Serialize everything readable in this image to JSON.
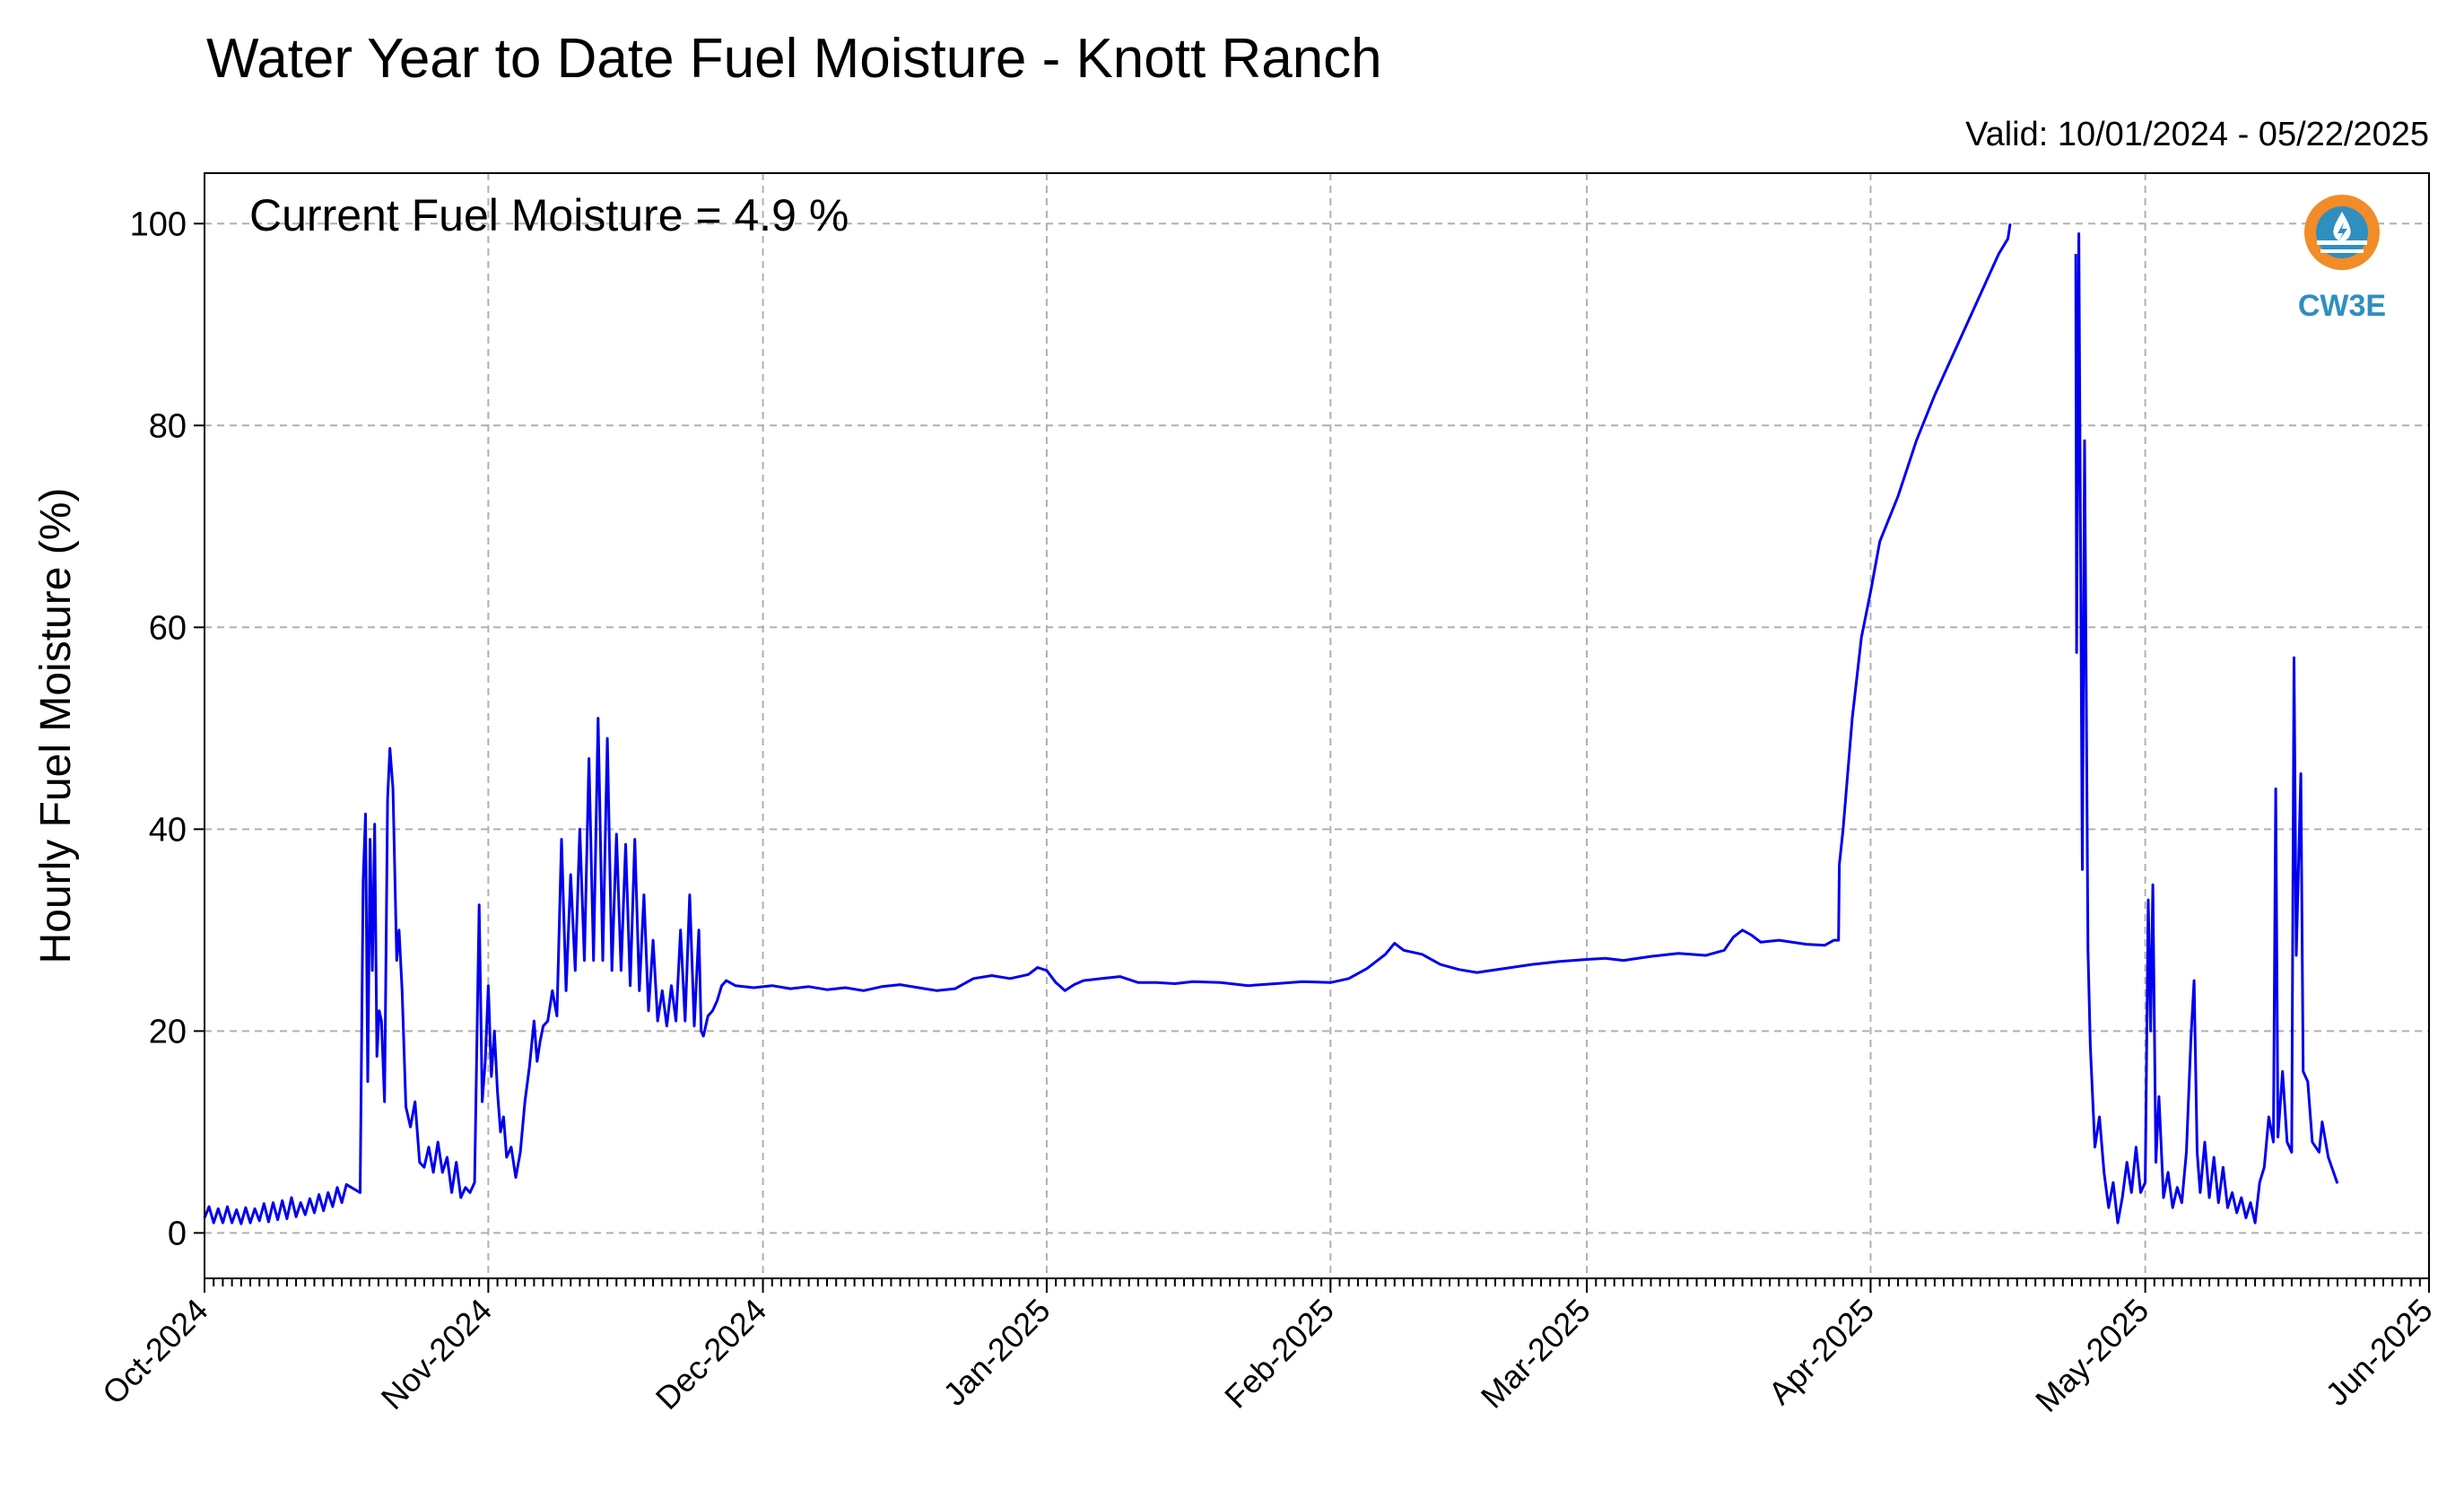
{
  "chart_data": {
    "type": "line",
    "title": "Water Year to Date Fuel Moisture - Knott Ranch",
    "subtitle": "Valid: 10/01/2024 - 05/22/2025",
    "annotation": "Current Fuel Moisture = 4.9 %",
    "xlabel": "",
    "ylabel": "Hourly Fuel Moisture (%)",
    "xlim": [
      "2024-10-01",
      "2025-06-01"
    ],
    "ylim": [
      -4.5,
      105
    ],
    "yticks": [
      0,
      20,
      40,
      60,
      80,
      100
    ],
    "xticks": [
      {
        "date": "2024-10-01",
        "label": "Oct-2024"
      },
      {
        "date": "2024-11-01",
        "label": "Nov-2024"
      },
      {
        "date": "2024-12-01",
        "label": "Dec-2024"
      },
      {
        "date": "2025-01-01",
        "label": "Jan-2025"
      },
      {
        "date": "2025-02-01",
        "label": "Feb-2025"
      },
      {
        "date": "2025-03-01",
        "label": "Mar-2025"
      },
      {
        "date": "2025-04-01",
        "label": "Apr-2025"
      },
      {
        "date": "2025-05-01",
        "label": "May-2025"
      },
      {
        "date": "2025-06-01",
        "label": "Jun-2025"
      }
    ],
    "grid": true,
    "series_color": "#0000ee",
    "series": [
      {
        "values": [
          [
            "2024-10-01",
            1.5
          ],
          [
            "2024-10-01T12",
            2.6
          ],
          [
            "2024-10-02",
            1.0
          ],
          [
            "2024-10-02T12",
            2.4
          ],
          [
            "2024-10-03",
            1.0
          ],
          [
            "2024-10-03T12",
            2.6
          ],
          [
            "2024-10-04",
            1.0
          ],
          [
            "2024-10-04T12",
            2.3
          ],
          [
            "2024-10-05",
            0.9
          ],
          [
            "2024-10-05T12",
            2.5
          ],
          [
            "2024-10-06",
            1.0
          ],
          [
            "2024-10-06T12",
            2.4
          ],
          [
            "2024-10-07",
            1.2
          ],
          [
            "2024-10-07T12",
            2.9
          ],
          [
            "2024-10-08",
            1.1
          ],
          [
            "2024-10-08T12",
            3.0
          ],
          [
            "2024-10-09",
            1.3
          ],
          [
            "2024-10-09T12",
            3.2
          ],
          [
            "2024-10-10",
            1.4
          ],
          [
            "2024-10-10T12",
            3.5
          ],
          [
            "2024-10-11",
            1.6
          ],
          [
            "2024-10-11T12",
            3.0
          ],
          [
            "2024-10-12",
            1.8
          ],
          [
            "2024-10-12T12",
            3.4
          ],
          [
            "2024-10-13",
            2.0
          ],
          [
            "2024-10-13T12",
            3.8
          ],
          [
            "2024-10-14",
            2.2
          ],
          [
            "2024-10-14T12",
            4.0
          ],
          [
            "2024-10-15",
            2.6
          ],
          [
            "2024-10-15T12",
            4.5
          ],
          [
            "2024-10-16",
            3.0
          ],
          [
            "2024-10-16T12",
            4.8
          ],
          [
            "2024-10-18",
            4.0
          ],
          [
            "2024-10-18T08",
            35.0
          ],
          [
            "2024-10-18T14",
            41.5
          ],
          [
            "2024-10-18T20",
            15.0
          ],
          [
            "2024-10-19T02",
            39.0
          ],
          [
            "2024-10-19T08",
            26.0
          ],
          [
            "2024-10-19T14",
            40.5
          ],
          [
            "2024-10-19T20",
            17.5
          ],
          [
            "2024-10-20T02",
            22.0
          ],
          [
            "2024-10-20T08",
            21.0
          ],
          [
            "2024-10-20T16",
            13.0
          ],
          [
            "2024-10-21",
            43.0
          ],
          [
            "2024-10-21T06",
            48.0
          ],
          [
            "2024-10-21T14",
            44.0
          ],
          [
            "2024-10-22",
            27.0
          ],
          [
            "2024-10-22T06",
            30.0
          ],
          [
            "2024-10-22T14",
            24.0
          ],
          [
            "2024-10-23",
            12.5
          ],
          [
            "2024-10-23T12",
            10.5
          ],
          [
            "2024-10-24",
            13.0
          ],
          [
            "2024-10-24T12",
            7.0
          ],
          [
            "2024-10-25",
            6.5
          ],
          [
            "2024-10-25T12",
            8.5
          ],
          [
            "2024-10-26",
            6.0
          ],
          [
            "2024-10-26T12",
            9.0
          ],
          [
            "2024-10-27",
            6.0
          ],
          [
            "2024-10-27T12",
            7.5
          ],
          [
            "2024-10-28",
            4.0
          ],
          [
            "2024-10-28T12",
            7.0
          ],
          [
            "2024-10-29",
            3.5
          ],
          [
            "2024-10-29T12",
            4.5
          ],
          [
            "2024-10-30",
            4.0
          ],
          [
            "2024-10-30T12",
            5.0
          ],
          [
            "2024-10-31",
            32.5
          ],
          [
            "2024-10-31T08",
            13.0
          ],
          [
            "2024-10-31T16",
            17.0
          ],
          [
            "2024-11-01",
            24.5
          ],
          [
            "2024-11-01T08",
            15.5
          ],
          [
            "2024-11-01T16",
            20.0
          ],
          [
            "2024-11-02",
            14.0
          ],
          [
            "2024-11-02T08",
            10.0
          ],
          [
            "2024-11-02T16",
            11.5
          ],
          [
            "2024-11-03",
            7.5
          ],
          [
            "2024-11-03T12",
            8.5
          ],
          [
            "2024-11-04",
            5.5
          ],
          [
            "2024-11-04T12",
            8.0
          ],
          [
            "2024-11-05",
            13.0
          ],
          [
            "2024-11-05T12",
            16.5
          ],
          [
            "2024-11-06",
            21.0
          ],
          [
            "2024-11-06T08",
            17.0
          ],
          [
            "2024-11-06T16",
            19.0
          ],
          [
            "2024-11-07",
            20.5
          ],
          [
            "2024-11-07T12",
            21.0
          ],
          [
            "2024-11-08",
            24.0
          ],
          [
            "2024-11-08T12",
            21.5
          ],
          [
            "2024-11-09",
            39.0
          ],
          [
            "2024-11-09T12",
            24.0
          ],
          [
            "2024-11-10",
            35.5
          ],
          [
            "2024-11-10T12",
            26.0
          ],
          [
            "2024-11-11",
            40.0
          ],
          [
            "2024-11-11T12",
            27.0
          ],
          [
            "2024-11-12",
            47.0
          ],
          [
            "2024-11-12T12",
            27.0
          ],
          [
            "2024-11-13",
            51.0
          ],
          [
            "2024-11-13T12",
            27.0
          ],
          [
            "2024-11-14",
            49.0
          ],
          [
            "2024-11-14T12",
            26.0
          ],
          [
            "2024-11-15",
            39.5
          ],
          [
            "2024-11-15T12",
            26.0
          ],
          [
            "2024-11-16",
            38.5
          ],
          [
            "2024-11-16T12",
            24.5
          ],
          [
            "2024-11-17",
            39.0
          ],
          [
            "2024-11-17T12",
            24.0
          ],
          [
            "2024-11-18",
            33.5
          ],
          [
            "2024-11-18T12",
            22.0
          ],
          [
            "2024-11-19",
            29.0
          ],
          [
            "2024-11-19T12",
            21.0
          ],
          [
            "2024-11-20",
            24.0
          ],
          [
            "2024-11-20T12",
            20.5
          ],
          [
            "2024-11-21",
            24.5
          ],
          [
            "2024-11-21T12",
            21.0
          ],
          [
            "2024-11-22",
            30.0
          ],
          [
            "2024-11-22T12",
            21.0
          ],
          [
            "2024-11-23",
            33.5
          ],
          [
            "2024-11-23T12",
            20.5
          ],
          [
            "2024-11-24",
            30.0
          ],
          [
            "2024-11-24T06",
            20.0
          ],
          [
            "2024-11-24T12",
            19.5
          ],
          [
            "2024-11-25",
            21.5
          ],
          [
            "2024-11-25T12",
            22.0
          ],
          [
            "2024-11-26",
            23.0
          ],
          [
            "2024-11-26T12",
            24.5
          ],
          [
            "2024-11-27",
            25.0
          ],
          [
            "2024-11-28",
            24.5
          ],
          [
            "2024-11-30",
            24.3
          ],
          [
            "2024-12-02",
            24.5
          ],
          [
            "2024-12-04",
            24.2
          ],
          [
            "2024-12-06",
            24.4
          ],
          [
            "2024-12-08",
            24.1
          ],
          [
            "2024-12-10",
            24.3
          ],
          [
            "2024-12-12",
            24.0
          ],
          [
            "2024-12-14",
            24.4
          ],
          [
            "2024-12-16",
            24.6
          ],
          [
            "2024-12-18",
            24.3
          ],
          [
            "2024-12-20",
            24.0
          ],
          [
            "2024-12-22",
            24.2
          ],
          [
            "2024-12-24",
            25.2
          ],
          [
            "2024-12-26",
            25.5
          ],
          [
            "2024-12-28",
            25.2
          ],
          [
            "2024-12-30",
            25.6
          ],
          [
            "2024-12-31",
            26.3
          ],
          [
            "2025-01-01",
            26.0
          ],
          [
            "2025-01-02",
            24.8
          ],
          [
            "2025-01-03",
            24.0
          ],
          [
            "2025-01-04",
            24.6
          ],
          [
            "2025-01-05",
            25.0
          ],
          [
            "2025-01-07",
            25.2
          ],
          [
            "2025-01-09",
            25.4
          ],
          [
            "2025-01-11",
            24.8
          ],
          [
            "2025-01-13",
            24.8
          ],
          [
            "2025-01-15",
            24.7
          ],
          [
            "2025-01-17",
            24.9
          ],
          [
            "2025-01-20",
            24.8
          ],
          [
            "2025-01-23",
            24.5
          ],
          [
            "2025-01-26",
            24.7
          ],
          [
            "2025-01-29",
            24.9
          ],
          [
            "2025-02-01",
            24.8
          ],
          [
            "2025-02-03",
            25.2
          ],
          [
            "2025-02-05",
            26.2
          ],
          [
            "2025-02-07",
            27.6
          ],
          [
            "2025-02-08",
            28.7
          ],
          [
            "2025-02-09",
            28.0
          ],
          [
            "2025-02-11",
            27.6
          ],
          [
            "2025-02-13",
            26.6
          ],
          [
            "2025-02-15",
            26.1
          ],
          [
            "2025-02-17",
            25.8
          ],
          [
            "2025-02-20",
            26.2
          ],
          [
            "2025-02-23",
            26.6
          ],
          [
            "2025-02-26",
            26.9
          ],
          [
            "2025-03-01",
            27.1
          ],
          [
            "2025-03-03",
            27.2
          ],
          [
            "2025-03-05",
            27.0
          ],
          [
            "2025-03-08",
            27.4
          ],
          [
            "2025-03-11",
            27.7
          ],
          [
            "2025-03-14",
            27.5
          ],
          [
            "2025-03-16",
            28.0
          ],
          [
            "2025-03-17",
            29.3
          ],
          [
            "2025-03-18",
            30.0
          ],
          [
            "2025-03-19",
            29.5
          ],
          [
            "2025-03-20",
            28.8
          ],
          [
            "2025-03-22",
            29.0
          ],
          [
            "2025-03-25",
            28.6
          ],
          [
            "2025-03-27",
            28.5
          ],
          [
            "2025-03-28",
            29.0
          ],
          [
            "2025-03-28T12",
            29.0
          ],
          [
            "2025-03-28T14",
            36.5
          ],
          [
            "2025-03-29",
            40.0
          ],
          [
            "2025-03-30",
            51.0
          ],
          [
            "2025-03-31",
            59.0
          ],
          [
            "2025-04-01",
            63.5
          ],
          [
            "2025-04-02",
            68.5
          ],
          [
            "2025-04-04",
            73.0
          ],
          [
            "2025-04-06",
            78.5
          ],
          [
            "2025-04-08",
            83.0
          ],
          [
            "2025-04-10",
            87.0
          ],
          [
            "2025-04-12",
            91.0
          ],
          [
            "2025-04-13",
            93.0
          ],
          [
            "2025-04-14",
            95.0
          ],
          [
            "2025-04-15",
            97.0
          ],
          [
            "2025-04-16",
            98.5
          ],
          [
            "2025-04-16T06",
            100.0
          ],
          null,
          [
            "2025-04-23T10",
            97.0
          ],
          [
            "2025-04-23T12",
            57.5
          ],
          [
            "2025-04-23T18",
            99.0
          ],
          [
            "2025-04-24T03",
            36.0
          ],
          [
            "2025-04-24T09",
            78.5
          ],
          [
            "2025-04-24T18",
            28.0
          ],
          [
            "2025-04-25",
            18.5
          ],
          [
            "2025-04-25T12",
            8.5
          ],
          [
            "2025-04-26",
            11.5
          ],
          [
            "2025-04-26T12",
            6.0
          ],
          [
            "2025-04-27",
            2.5
          ],
          [
            "2025-04-27T12",
            5.0
          ],
          [
            "2025-04-28",
            1.0
          ],
          [
            "2025-04-28T12",
            3.5
          ],
          [
            "2025-04-29",
            7.0
          ],
          [
            "2025-04-29T12",
            4.0
          ],
          [
            "2025-04-30",
            8.5
          ],
          [
            "2025-04-30T12",
            4.0
          ],
          [
            "2025-05-01",
            5.0
          ],
          [
            "2025-05-01T08",
            33.0
          ],
          [
            "2025-05-01T14",
            20.0
          ],
          [
            "2025-05-01T20",
            34.5
          ],
          [
            "2025-05-02T04",
            7.0
          ],
          [
            "2025-05-02T12",
            13.5
          ],
          [
            "2025-05-03",
            3.5
          ],
          [
            "2025-05-03T12",
            6.0
          ],
          [
            "2025-05-04",
            2.5
          ],
          [
            "2025-05-04T12",
            4.5
          ],
          [
            "2025-05-05",
            3.0
          ],
          [
            "2025-05-05T12",
            8.0
          ],
          [
            "2025-05-06",
            19.5
          ],
          [
            "2025-05-06T08",
            25.0
          ],
          [
            "2025-05-06T16",
            8.0
          ],
          [
            "2025-05-07",
            4.0
          ],
          [
            "2025-05-07T12",
            9.0
          ],
          [
            "2025-05-08",
            3.5
          ],
          [
            "2025-05-08T12",
            7.5
          ],
          [
            "2025-05-09",
            3.0
          ],
          [
            "2025-05-09T12",
            6.5
          ],
          [
            "2025-05-10",
            2.5
          ],
          [
            "2025-05-10T12",
            4.0
          ],
          [
            "2025-05-11",
            2.0
          ],
          [
            "2025-05-11T12",
            3.5
          ],
          [
            "2025-05-12",
            1.5
          ],
          [
            "2025-05-12T12",
            3.0
          ],
          [
            "2025-05-13",
            1.0
          ],
          [
            "2025-05-13T12",
            5.0
          ],
          [
            "2025-05-14",
            6.5
          ],
          [
            "2025-05-14T12",
            11.5
          ],
          [
            "2025-05-15",
            9.0
          ],
          [
            "2025-05-15T06",
            44.0
          ],
          [
            "2025-05-15T12",
            9.5
          ],
          [
            "2025-05-16",
            16.0
          ],
          [
            "2025-05-16T12",
            9.0
          ],
          [
            "2025-05-17",
            8.0
          ],
          [
            "2025-05-17T06",
            57.0
          ],
          [
            "2025-05-17T12",
            27.5
          ],
          [
            "2025-05-18",
            45.5
          ],
          [
            "2025-05-18T06",
            16.0
          ],
          [
            "2025-05-18T18",
            15.0
          ],
          [
            "2025-05-19T06",
            9.0
          ],
          [
            "2025-05-20",
            8.0
          ],
          [
            "2025-05-20T08",
            11.0
          ],
          [
            "2025-05-21",
            7.5
          ],
          [
            "2025-05-22",
            4.9
          ]
        ]
      }
    ]
  },
  "logo": {
    "icon": "cw3e-logo-icon",
    "text": "CW3E",
    "colors": {
      "ring": "#f28c28",
      "water": "#2f8fbf"
    }
  }
}
